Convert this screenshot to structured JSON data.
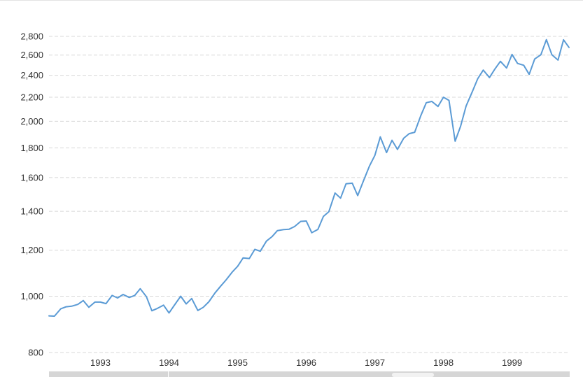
{
  "chart_data": {
    "type": "line",
    "title": "",
    "xlabel": "",
    "ylabel": "",
    "y_scale": "log",
    "ylim": [
      800,
      2850
    ],
    "grid": "horizontal dashed",
    "yticks": [
      800,
      1000,
      1200,
      1400,
      1600,
      1800,
      2000,
      2200,
      2400,
      2600,
      2800
    ],
    "ytick_labels": [
      "800",
      "1,000",
      "1,200",
      "1,400",
      "1,600",
      "1,800",
      "2,000",
      "2,200",
      "2,400",
      "2,600",
      "2,800"
    ],
    "xticks": [
      1993,
      1994,
      1995,
      1996,
      1997,
      1998,
      1999
    ],
    "xtick_labels": [
      "1993",
      "1994",
      "1995",
      "1996",
      "1997",
      "1998",
      "1999"
    ],
    "xlim": [
      1992.25,
      1999.83
    ],
    "series": [
      {
        "color": "#5b9bd5",
        "points": [
          [
            1992.25,
            925
          ],
          [
            1992.33,
            924
          ],
          [
            1992.42,
            951
          ],
          [
            1992.5,
            959
          ],
          [
            1992.58,
            961
          ],
          [
            1992.67,
            968
          ],
          [
            1992.75,
            983
          ],
          [
            1992.83,
            957
          ],
          [
            1992.92,
            977
          ],
          [
            1993.0,
            977
          ],
          [
            1993.08,
            971
          ],
          [
            1993.17,
            1003
          ],
          [
            1993.25,
            993
          ],
          [
            1993.33,
            1007
          ],
          [
            1993.42,
            995
          ],
          [
            1993.5,
            1003
          ],
          [
            1993.58,
            1030
          ],
          [
            1993.67,
            998
          ],
          [
            1993.75,
            944
          ],
          [
            1993.83,
            953
          ],
          [
            1993.92,
            965
          ],
          [
            1994.0,
            936
          ],
          [
            1994.08,
            966
          ],
          [
            1994.17,
            1000
          ],
          [
            1994.25,
            970
          ],
          [
            1994.33,
            991
          ],
          [
            1994.42,
            945
          ],
          [
            1994.5,
            957
          ],
          [
            1994.58,
            978
          ],
          [
            1994.67,
            1013
          ],
          [
            1994.75,
            1040
          ],
          [
            1994.83,
            1066
          ],
          [
            1994.92,
            1100
          ],
          [
            1995.0,
            1126
          ],
          [
            1995.08,
            1164
          ],
          [
            1995.17,
            1161
          ],
          [
            1995.25,
            1204
          ],
          [
            1995.33,
            1195
          ],
          [
            1995.42,
            1244
          ],
          [
            1995.5,
            1266
          ],
          [
            1995.58,
            1297
          ],
          [
            1995.67,
            1302
          ],
          [
            1995.75,
            1304
          ],
          [
            1995.83,
            1318
          ],
          [
            1995.92,
            1345
          ],
          [
            1996.0,
            1347
          ],
          [
            1996.08,
            1286
          ],
          [
            1996.17,
            1303
          ],
          [
            1996.25,
            1372
          ],
          [
            1996.33,
            1398
          ],
          [
            1996.42,
            1505
          ],
          [
            1996.5,
            1475
          ],
          [
            1996.58,
            1561
          ],
          [
            1996.67,
            1565
          ],
          [
            1996.75,
            1490
          ],
          [
            1996.83,
            1575
          ],
          [
            1996.92,
            1674
          ],
          [
            1997.0,
            1747
          ],
          [
            1997.08,
            1880
          ],
          [
            1997.17,
            1767
          ],
          [
            1997.25,
            1855
          ],
          [
            1997.33,
            1789
          ],
          [
            1997.42,
            1870
          ],
          [
            1997.5,
            1904
          ],
          [
            1997.58,
            1915
          ],
          [
            1997.67,
            2046
          ],
          [
            1997.75,
            2153
          ],
          [
            1997.83,
            2164
          ],
          [
            1997.92,
            2121
          ],
          [
            1998.0,
            2200
          ],
          [
            1998.08,
            2173
          ],
          [
            1998.17,
            1848
          ],
          [
            1998.25,
            1961
          ],
          [
            1998.33,
            2125
          ],
          [
            1998.42,
            2248
          ],
          [
            1998.5,
            2368
          ],
          [
            1998.58,
            2450
          ],
          [
            1998.67,
            2378
          ],
          [
            1998.75,
            2460
          ],
          [
            1998.83,
            2536
          ],
          [
            1998.92,
            2470
          ],
          [
            1999.0,
            2607
          ],
          [
            1999.08,
            2515
          ],
          [
            1999.17,
            2497
          ],
          [
            1999.25,
            2409
          ],
          [
            1999.33,
            2560
          ],
          [
            1999.42,
            2603
          ],
          [
            1999.5,
            2764
          ],
          [
            1999.58,
            2604
          ],
          [
            1999.67,
            2549
          ],
          [
            1999.75,
            2762
          ],
          [
            1999.83,
            2680
          ]
        ]
      }
    ]
  }
}
